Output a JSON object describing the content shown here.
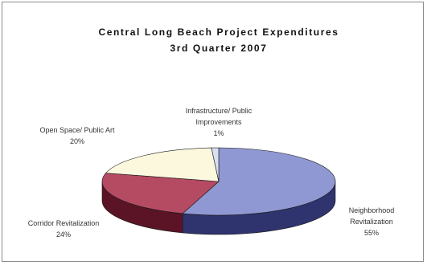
{
  "chart_data": {
    "type": "pie",
    "title": "Central Long Beach Project Expenditures",
    "subtitle": "3rd Quarter 2007",
    "slices": [
      {
        "label": "Neighborhood Revitalization",
        "label_lines": [
          "Neighborhood",
          "Revitalization"
        ],
        "value": 55,
        "display": "55%",
        "color": "#8f98d2",
        "side_color": "#2f336e"
      },
      {
        "label": "Corridor Revitalization",
        "label_lines": [
          "Corridor Revitalization"
        ],
        "value": 24,
        "display": "24%",
        "color": "#b54a63",
        "side_color": "#5a1426"
      },
      {
        "label": "Open Space/ Public Art",
        "label_lines": [
          "Open Space/ Public Art"
        ],
        "value": 20,
        "display": "20%",
        "color": "#fbf8de",
        "side_color": "#bdb99a"
      },
      {
        "label": "Infrastructure/ Public Improvements",
        "label_lines": [
          "Infrastructure/ Public",
          "Improvements"
        ],
        "value": 1,
        "display": "1%",
        "color": "#d8dff0",
        "side_color": "#7a8098"
      }
    ],
    "legend": "none"
  }
}
